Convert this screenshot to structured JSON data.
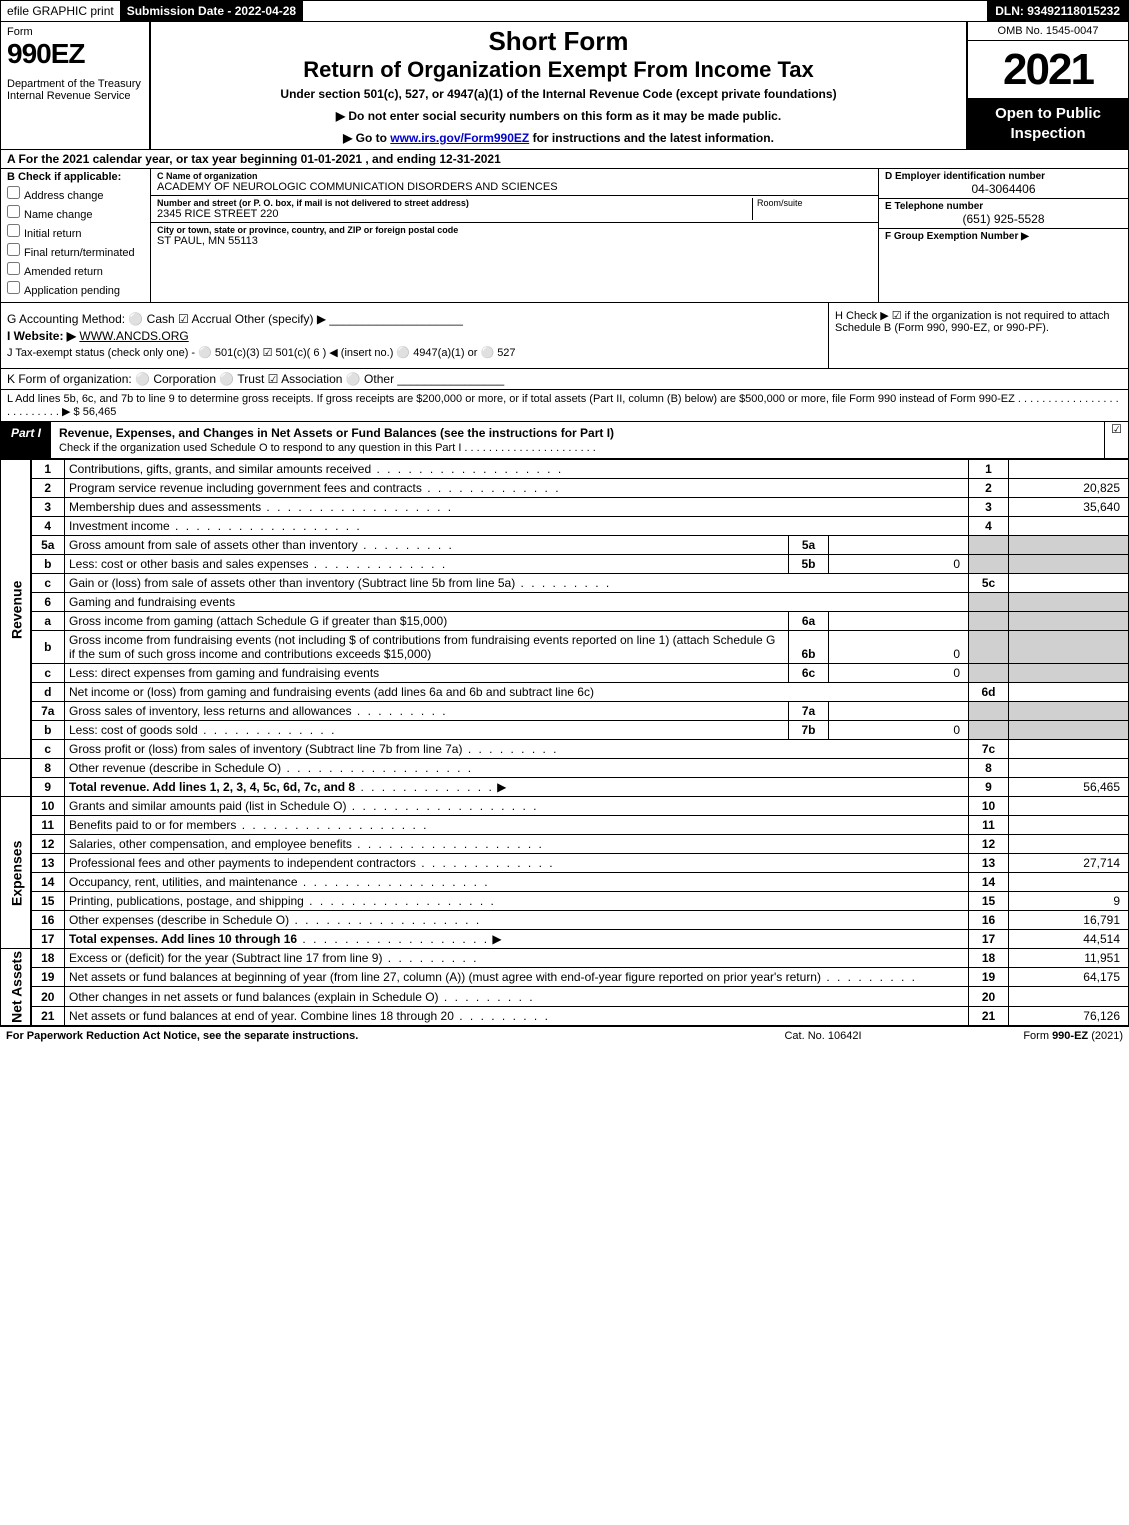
{
  "topbar": {
    "efile": "efile GRAPHIC print",
    "subdate_label": "Submission Date - 2022-04-28",
    "dln": "DLN: 93492118015232"
  },
  "header": {
    "form": "Form",
    "formnum": "990EZ",
    "dept": "Department of the Treasury\nInternal Revenue Service",
    "short": "Short Form",
    "title": "Return of Organization Exempt From Income Tax",
    "sub": "Under section 501(c), 527, or 4947(a)(1) of the Internal Revenue Code (except private foundations)",
    "note1": "▶ Do not enter social security numbers on this form as it may be made public.",
    "note2_pre": "▶ Go to ",
    "note2_link": "www.irs.gov/Form990EZ",
    "note2_post": " for instructions and the latest information.",
    "omb": "OMB No. 1545-0047",
    "year": "2021",
    "open": "Open to Public Inspection"
  },
  "lineA": "A  For the 2021 calendar year, or tax year beginning 01-01-2021 , and ending 12-31-2021",
  "boxB": {
    "hdr": "B  Check if applicable:",
    "items": [
      "Address change",
      "Name change",
      "Initial return",
      "Final return/terminated",
      "Amended return",
      "Application pending"
    ]
  },
  "boxC": {
    "name_lbl": "C Name of organization",
    "name": "ACADEMY OF NEUROLOGIC COMMUNICATION DISORDERS AND SCIENCES",
    "street_lbl": "Number and street (or P. O. box, if mail is not delivered to street address)",
    "street": "2345 RICE STREET 220",
    "room_lbl": "Room/suite",
    "city_lbl": "City or town, state or province, country, and ZIP or foreign postal code",
    "city": "ST PAUL, MN  55113"
  },
  "boxR": {
    "d_lbl": "D Employer identification number",
    "d_val": "04-3064406",
    "e_lbl": "E Telephone number",
    "e_val": "(651) 925-5528",
    "f_lbl": "F Group Exemption Number  ▶"
  },
  "gh": {
    "g": "G Accounting Method:   ⚪ Cash   ☑ Accrual   Other (specify) ▶ ____________________",
    "i_lbl": "I Website: ▶",
    "i_val": "WWW.ANCDS.ORG",
    "j": "J Tax-exempt status (check only one) -  ⚪ 501(c)(3)  ☑ 501(c)( 6 ) ◀ (insert no.)  ⚪ 4947(a)(1) or  ⚪ 527",
    "h": "H  Check ▶ ☑ if the organization is not required to attach Schedule B (Form 990, 990-EZ, or 990-PF)."
  },
  "lineK": "K Form of organization:   ⚪ Corporation   ⚪ Trust   ☑ Association   ⚪ Other  ________________",
  "lineL": "L Add lines 5b, 6c, and 7b to line 9 to determine gross receipts. If gross receipts are $200,000 or more, or if total assets (Part II, column (B) below) are $500,000 or more, file Form 990 instead of Form 990-EZ .  .  .  .  .  .  .  .  .  .  .  .  .  .  .  .  .  .  .  .  .  .  .  .  .  .  ▶ $ 56,465",
  "part1": {
    "tab": "Part I",
    "title": "Revenue, Expenses, and Changes in Net Assets or Fund Balances (see the instructions for Part I)",
    "sub": "Check if the organization used Schedule O to respond to any question in this Part I"
  },
  "sidelabels": {
    "rev": "Revenue",
    "exp": "Expenses",
    "net": "Net Assets"
  },
  "rows": {
    "r1": {
      "n": "1",
      "d": "Contributions, gifts, grants, and similar amounts received",
      "rl": "1",
      "rv": ""
    },
    "r2": {
      "n": "2",
      "d": "Program service revenue including government fees and contracts",
      "rl": "2",
      "rv": "20,825"
    },
    "r3": {
      "n": "3",
      "d": "Membership dues and assessments",
      "rl": "3",
      "rv": "35,640"
    },
    "r4": {
      "n": "4",
      "d": "Investment income",
      "rl": "4",
      "rv": ""
    },
    "r5a": {
      "n": "5a",
      "d": "Gross amount from sale of assets other than inventory",
      "ml": "5a",
      "mv": ""
    },
    "r5b": {
      "n": "b",
      "d": "Less: cost or other basis and sales expenses",
      "ml": "5b",
      "mv": "0"
    },
    "r5c": {
      "n": "c",
      "d": "Gain or (loss) from sale of assets other than inventory (Subtract line 5b from line 5a)",
      "rl": "5c",
      "rv": ""
    },
    "r6": {
      "n": "6",
      "d": "Gaming and fundraising events"
    },
    "r6a": {
      "n": "a",
      "d": "Gross income from gaming (attach Schedule G if greater than $15,000)",
      "ml": "6a",
      "mv": ""
    },
    "r6b": {
      "n": "b",
      "d": "Gross income from fundraising events (not including $                     of contributions from fundraising events reported on line 1) (attach Schedule G if the sum of such gross income and contributions exceeds $15,000)",
      "ml": "6b",
      "mv": "0"
    },
    "r6c": {
      "n": "c",
      "d": "Less: direct expenses from gaming and fundraising events",
      "ml": "6c",
      "mv": "0"
    },
    "r6d": {
      "n": "d",
      "d": "Net income or (loss) from gaming and fundraising events (add lines 6a and 6b and subtract line 6c)",
      "rl": "6d",
      "rv": ""
    },
    "r7a": {
      "n": "7a",
      "d": "Gross sales of inventory, less returns and allowances",
      "ml": "7a",
      "mv": ""
    },
    "r7b": {
      "n": "b",
      "d": "Less: cost of goods sold",
      "ml": "7b",
      "mv": "0"
    },
    "r7c": {
      "n": "c",
      "d": "Gross profit or (loss) from sales of inventory (Subtract line 7b from line 7a)",
      "rl": "7c",
      "rv": ""
    },
    "r8": {
      "n": "8",
      "d": "Other revenue (describe in Schedule O)",
      "rl": "8",
      "rv": ""
    },
    "r9": {
      "n": "9",
      "d": "Total revenue. Add lines 1, 2, 3, 4, 5c, 6d, 7c, and 8",
      "rl": "9",
      "rv": "56,465",
      "bold": true
    },
    "r10": {
      "n": "10",
      "d": "Grants and similar amounts paid (list in Schedule O)",
      "rl": "10",
      "rv": ""
    },
    "r11": {
      "n": "11",
      "d": "Benefits paid to or for members",
      "rl": "11",
      "rv": ""
    },
    "r12": {
      "n": "12",
      "d": "Salaries, other compensation, and employee benefits",
      "rl": "12",
      "rv": ""
    },
    "r13": {
      "n": "13",
      "d": "Professional fees and other payments to independent contractors",
      "rl": "13",
      "rv": "27,714"
    },
    "r14": {
      "n": "14",
      "d": "Occupancy, rent, utilities, and maintenance",
      "rl": "14",
      "rv": ""
    },
    "r15": {
      "n": "15",
      "d": "Printing, publications, postage, and shipping",
      "rl": "15",
      "rv": "9"
    },
    "r16": {
      "n": "16",
      "d": "Other expenses (describe in Schedule O)",
      "rl": "16",
      "rv": "16,791"
    },
    "r17": {
      "n": "17",
      "d": "Total expenses. Add lines 10 through 16",
      "rl": "17",
      "rv": "44,514",
      "bold": true
    },
    "r18": {
      "n": "18",
      "d": "Excess or (deficit) for the year (Subtract line 17 from line 9)",
      "rl": "18",
      "rv": "11,951"
    },
    "r19": {
      "n": "19",
      "d": "Net assets or fund balances at beginning of year (from line 27, column (A)) (must agree with end-of-year figure reported on prior year's return)",
      "rl": "19",
      "rv": "64,175"
    },
    "r20": {
      "n": "20",
      "d": "Other changes in net assets or fund balances (explain in Schedule O)",
      "rl": "20",
      "rv": ""
    },
    "r21": {
      "n": "21",
      "d": "Net assets or fund balances at end of year. Combine lines 18 through 20",
      "rl": "21",
      "rv": "76,126"
    }
  },
  "footer": {
    "l": "For Paperwork Reduction Act Notice, see the separate instructions.",
    "c": "Cat. No. 10642I",
    "r_pre": "Form ",
    "r_b": "990-EZ",
    "r_post": " (2021)"
  },
  "colors": {
    "black": "#000000",
    "shade": "#d0d0d0",
    "link": "#0000cc"
  }
}
